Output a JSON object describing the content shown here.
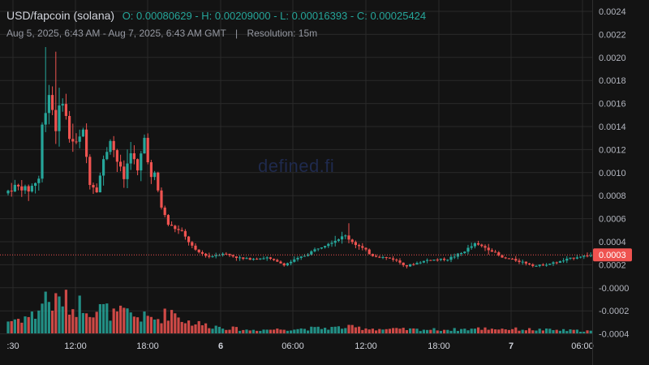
{
  "legend": {
    "symbol": "USD/fapcoin (solana)",
    "open": "O: 0.00080629",
    "high": "H: 0.00209000",
    "low": "L: 0.00016393",
    "close": "C: 0.00025424",
    "date_range": "Aug 5, 2025, 6:43 AM - Aug 7, 2025, 6:43 AM GMT",
    "separator": "|",
    "resolution": "Resolution: 15m"
  },
  "watermark": "defined.fi",
  "colors": {
    "background": "#131313",
    "up": "#26a69a",
    "down": "#ef5350",
    "grid": "#2a2a2a",
    "price_line": "#ef5350"
  },
  "chart_data": {
    "type": "candlestick",
    "interval": "15m",
    "last_price": 0.0003,
    "last_price_label": "0.0003",
    "y_ticks": [
      "0.0024",
      "0.0022",
      "0.0020",
      "0.0018",
      "0.0016",
      "0.0014",
      "0.0012",
      "0.0010",
      "0.0008",
      "0.0006",
      "0.0004",
      "0.0002",
      "-0.0000",
      "-0.0002",
      "-0.0004"
    ],
    "x_ticks": [
      {
        "label": ":30",
        "bold": false
      },
      {
        "label": "12:00",
        "bold": false
      },
      {
        "label": "18:00",
        "bold": false
      },
      {
        "label": "6",
        "bold": true
      },
      {
        "label": "06:00",
        "bold": false
      },
      {
        "label": "12:00",
        "bold": false
      },
      {
        "label": "18:00",
        "bold": false
      },
      {
        "label": "7",
        "bold": true
      },
      {
        "label": "06:00",
        "bold": false
      }
    ],
    "price_anchors": [
      [
        0,
        0.00082
      ],
      [
        3,
        0.00088
      ],
      [
        7,
        0.00085
      ],
      [
        10,
        0.00095
      ],
      [
        11,
        0.0014
      ],
      [
        13,
        0.0017
      ],
      [
        15,
        0.0014
      ],
      [
        17,
        0.00165
      ],
      [
        19,
        0.0013
      ],
      [
        21,
        0.00125
      ],
      [
        23,
        0.00135
      ],
      [
        25,
        0.00092
      ],
      [
        27,
        0.00085
      ],
      [
        29,
        0.0011
      ],
      [
        31,
        0.0013
      ],
      [
        33,
        0.0011
      ],
      [
        35,
        0.00095
      ],
      [
        37,
        0.0012
      ],
      [
        39,
        0.001
      ],
      [
        41,
        0.0013
      ],
      [
        43,
        0.00095
      ],
      [
        44,
        0.00098
      ],
      [
        46,
        0.0007
      ],
      [
        48,
        0.00055
      ],
      [
        52,
        0.00048
      ],
      [
        56,
        0.00032
      ],
      [
        60,
        0.00027
      ],
      [
        64,
        0.0003
      ],
      [
        70,
        0.00025
      ],
      [
        77,
        0.00026
      ],
      [
        82,
        0.0002
      ],
      [
        88,
        0.00028
      ],
      [
        94,
        0.00038
      ],
      [
        100,
        0.00045
      ],
      [
        102,
        0.0004
      ],
      [
        108,
        0.00028
      ],
      [
        114,
        0.00025
      ],
      [
        118,
        0.00019
      ],
      [
        124,
        0.00024
      ],
      [
        130,
        0.00025
      ],
      [
        134,
        0.0003
      ],
      [
        138,
        0.00038
      ],
      [
        142,
        0.00034
      ],
      [
        146,
        0.00026
      ],
      [
        150,
        0.00024
      ],
      [
        156,
        0.00019
      ],
      [
        162,
        0.00022
      ],
      [
        168,
        0.00027
      ],
      [
        171,
        0.00028
      ]
    ],
    "volume_anchors": [
      [
        0,
        0.3
      ],
      [
        8,
        0.45
      ],
      [
        11,
        0.9
      ],
      [
        13,
        0.7
      ],
      [
        16,
        0.85
      ],
      [
        19,
        0.6
      ],
      [
        22,
        0.75
      ],
      [
        25,
        0.55
      ],
      [
        28,
        0.6
      ],
      [
        31,
        0.45
      ],
      [
        34,
        0.5
      ],
      [
        38,
        0.4
      ],
      [
        44,
        0.35
      ],
      [
        48,
        0.55
      ],
      [
        52,
        0.3
      ],
      [
        58,
        0.2
      ],
      [
        70,
        0.08
      ],
      [
        90,
        0.12
      ],
      [
        100,
        0.15
      ],
      [
        110,
        0.1
      ],
      [
        130,
        0.09
      ],
      [
        140,
        0.12
      ],
      [
        171,
        0.06
      ]
    ]
  }
}
